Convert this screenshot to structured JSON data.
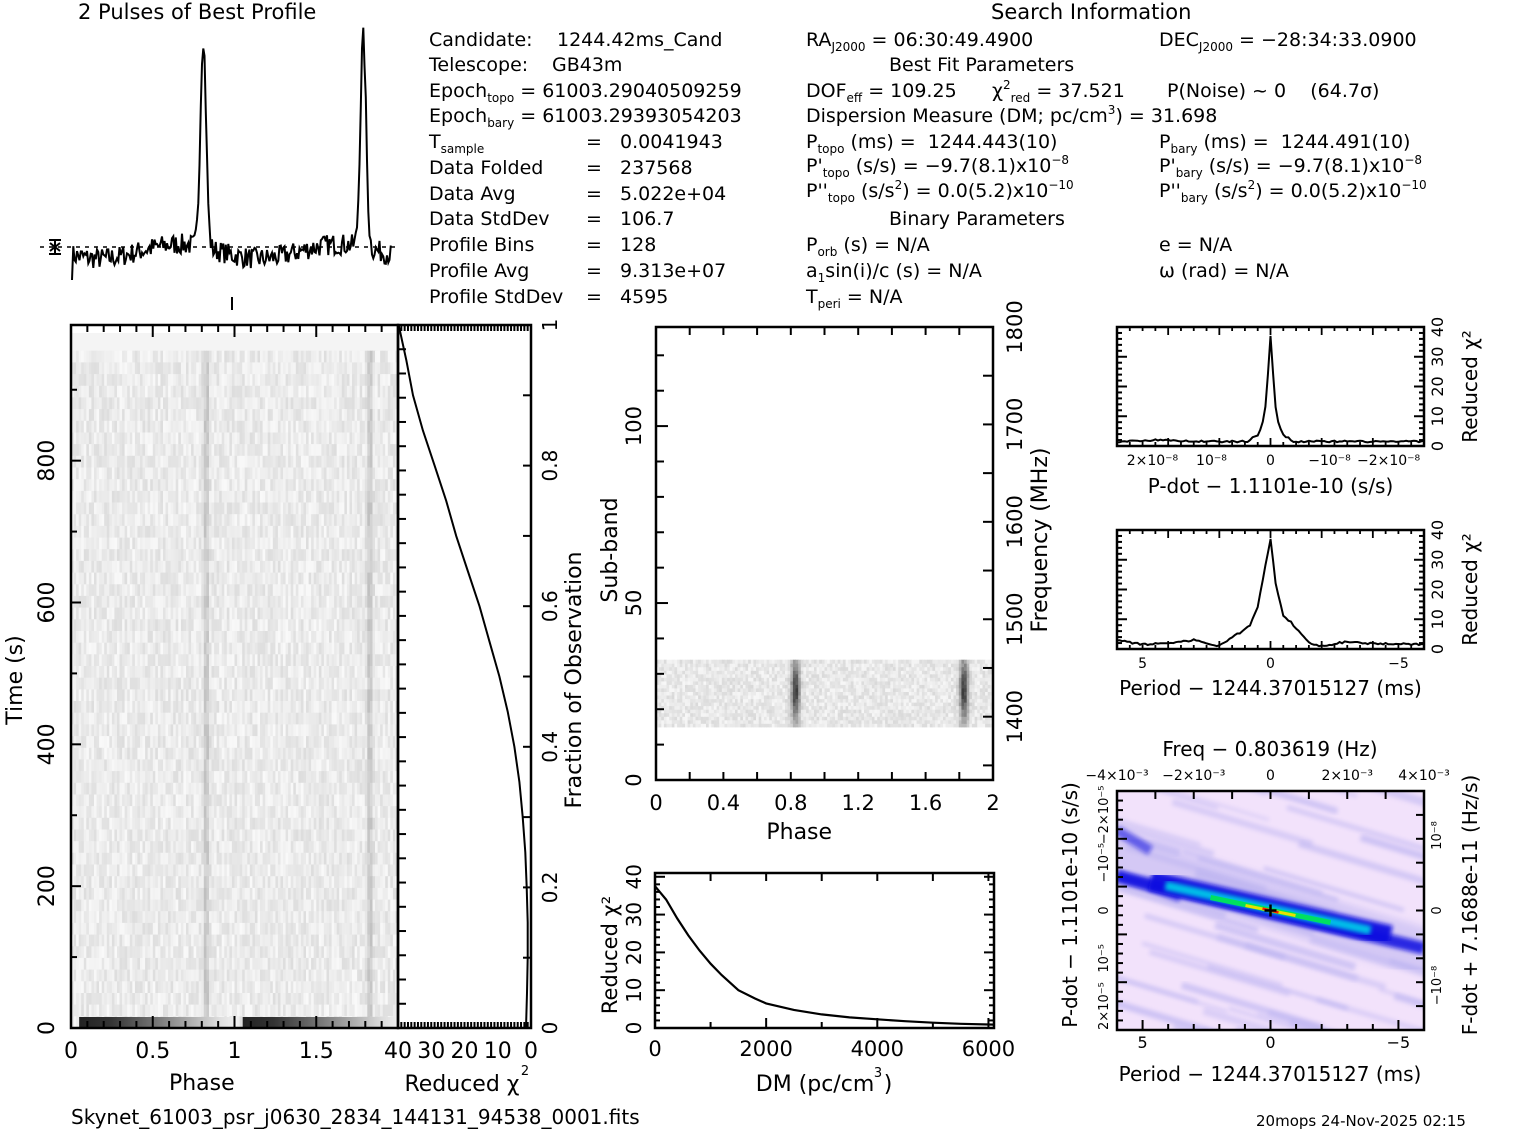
{
  "profile": {
    "title": "2 Pulses of Best Profile"
  },
  "search_info": {
    "title": "Search Information",
    "candidate_label": "Candidate:",
    "candidate": "1244.42ms_Cand",
    "telescope_label": "Telescope:",
    "telescope": "GB43m",
    "epoch_topo_label": "Epoch",
    "epoch_topo_sub": "topo",
    "epoch_topo": "= 61003.29040509259",
    "epoch_bary_label": "Epoch",
    "epoch_bary_sub": "bary",
    "epoch_bary": "= 61003.29393054203",
    "tsample_label": "T",
    "tsample_sub": "sample",
    "tsample": "=   0.0041943",
    "data_folded_label": "Data Folded",
    "data_folded": "=   237568",
    "data_avg_label": "Data Avg",
    "data_avg": "=   5.022e+04",
    "data_stddev_label": "Data StdDev",
    "data_stddev": "=   106.7",
    "profile_bins_label": "Profile Bins",
    "profile_bins": "=   128",
    "profile_avg_label": "Profile Avg",
    "profile_avg": "=   9.313e+07",
    "profile_stddev_label": "Profile StdDev",
    "profile_stddev": "=   4595",
    "ra_label": "RA",
    "ra_sub": "J2000",
    "ra": " = 06:30:49.4900",
    "dec_label": "DEC",
    "dec_sub": "J2000",
    "dec": " = −28:34:33.0900",
    "best_fit_title": "Best Fit Parameters",
    "dof_label": "DOF",
    "dof_sub": "eff",
    "dof": " = 109.25",
    "chi_label": "χ",
    "chi_sup": "2",
    "chi_sub": "red",
    "chi": " = 37.521",
    "pnoise": "P(Noise) ~ 0    (64.7σ)",
    "dm_label": "Dispersion Measure (DM; pc/cm",
    "dm_sup": "3",
    "dm": ") = 31.698",
    "ptopo_label": "P",
    "ptopo_sub": "topo",
    "ptopo": " (ms) =  1244.443(10)",
    "pdtopo_label": "P'",
    "pdtopo_sub": "topo",
    "pdtopo": " (s/s) = −9.7(8.1)x10",
    "pdtopo_exp": "−8",
    "pddtopo_label": "P''",
    "pddtopo_sub": "topo",
    "pddtopo_a": " (s/s",
    "pddtopo_sup": "2",
    "pddtopo_b": ") = 0.0(5.2)x10",
    "pddtopo_exp": "−10",
    "pbary_label": "P",
    "pbary_sub": "bary",
    "pbary": " (ms) =  1244.491(10)",
    "pdbary_label": "P'",
    "pdbary_sub": "bary",
    "pdbary": " (s/s) = −9.7(8.1)x10",
    "pdbary_exp": "−8",
    "pddbary_label": "P''",
    "pddbary_sub": "bary",
    "pddbary_a": " (s/s",
    "pddbary_sup": "2",
    "pddbary_b": ") = 0.0(5.2)x10",
    "pddbary_exp": "−10",
    "binary_title": "Binary Parameters",
    "porb_label": "P",
    "porb_sub": "orb",
    "porb": " (s) = N/A",
    "asini_label": "a",
    "asini_sub": "1",
    "asini": "sin(i)/c (s) = N/A",
    "tperi_label": "T",
    "tperi_sub": "peri",
    "tperi": " = N/A",
    "e": "e = N/A",
    "omega": "ω (rad) = N/A"
  },
  "footer": {
    "filename": "Skynet_61003_psr_j0630_2834_144131_94538_0001.fits",
    "stamp": "20mops 24-Nov-2025 02:15"
  },
  "chart_data": [
    {
      "id": "profile",
      "type": "line",
      "title": "2 Pulses of Best Profile",
      "xlabel": "",
      "ylabel": "",
      "xlim": [
        0,
        2
      ],
      "peaks_phase": [
        0.82,
        1.82
      ],
      "baseline_level": 0.12,
      "peak_level": 1.0
    },
    {
      "id": "time-phase",
      "type": "heatmap",
      "xlabel": "Phase",
      "ylabel": "Time (s)",
      "xlim": [
        0,
        2
      ],
      "ylim": [
        0,
        980
      ],
      "xticks": [
        "0",
        "0.5",
        "1",
        "1.5"
      ],
      "yticks": [
        "0",
        "200",
        "400",
        "600",
        "800"
      ],
      "pulse_phase": [
        0.82,
        1.82
      ]
    },
    {
      "id": "chi-vs-time",
      "type": "line",
      "xlabel": "Reduced χ²",
      "ylabel": "Fraction of Observation",
      "xlim": [
        40,
        0
      ],
      "ylim": [
        0,
        1
      ],
      "xticks": [
        "40",
        "30",
        "20",
        "10",
        "0"
      ],
      "yticks": [
        "0",
        "0.2",
        "0.4",
        "0.6",
        "0.8",
        "1"
      ],
      "x": [
        1.5,
        1.2,
        1.0,
        1.0,
        1.3,
        1.7,
        2.5,
        3.5,
        5.0,
        7.0,
        9.5,
        12.5,
        15.5,
        19.0,
        22.5,
        25.5,
        29.0,
        32.5,
        35.5,
        37.5
      ],
      "y": [
        0.0,
        0.05,
        0.1,
        0.15,
        0.2,
        0.25,
        0.3,
        0.35,
        0.4,
        0.45,
        0.5,
        0.55,
        0.6,
        0.65,
        0.7,
        0.75,
        0.8,
        0.85,
        0.9,
        0.95
      ]
    },
    {
      "id": "subband-phase",
      "type": "heatmap",
      "xlabel": "Phase",
      "ylabel": "Sub-band",
      "y2label": "Frequency (MHz)",
      "xlim": [
        0,
        2
      ],
      "ylim": [
        0,
        128
      ],
      "y2lim": [
        1335,
        1800
      ],
      "xticks": [
        "0",
        "0.4",
        "0.8",
        "1.2",
        "1.6",
        "2"
      ],
      "yticks": [
        "0",
        "50",
        "100"
      ],
      "y2ticks": [
        "1400",
        "1500",
        "1600",
        "1700",
        "1800"
      ],
      "active_subbands": [
        15,
        34
      ],
      "pulse_phase": [
        0.82,
        1.82
      ]
    },
    {
      "id": "chi-vs-dm",
      "type": "line",
      "xlabel": "DM (pc/cm³)",
      "ylabel": "Reduced χ²",
      "xlim": [
        0,
        6100
      ],
      "ylim": [
        0,
        41
      ],
      "xticks": [
        "0",
        "2000",
        "4000",
        "6000"
      ],
      "yticks": [
        "0",
        "10",
        "20",
        "30",
        "40"
      ],
      "x": [
        0,
        200,
        400,
        600,
        800,
        1000,
        1200,
        1500,
        1800,
        2000,
        2500,
        3000,
        3500,
        4000,
        4500,
        5000,
        5500,
        6100
      ],
      "y": [
        37.5,
        34,
        29,
        24.5,
        20.5,
        17,
        14,
        10,
        7.8,
        6.5,
        4.8,
        3.6,
        2.8,
        2.3,
        1.8,
        1.4,
        1.1,
        0.9
      ]
    },
    {
      "id": "chi-vs-pdot",
      "type": "line",
      "xlabel": "P-dot − 1.1101e-10 (s/s)",
      "ylabel": "Reduced χ²",
      "xlim": [
        2.6e-08,
        -2.6e-08
      ],
      "ylim": [
        0,
        40
      ],
      "xticks": [
        "2×10⁻⁸",
        "10⁻⁸",
        "0",
        "−10⁻⁸",
        "−2×10⁻⁸"
      ],
      "yticks": [
        "0",
        "10",
        "20",
        "30",
        "40"
      ],
      "x": [
        2.6e-08,
        2e-08,
        1e-08,
        4e-09,
        2e-09,
        1e-09,
        5e-10,
        0,
        -5e-10,
        -1e-09,
        -2e-09,
        -4e-09,
        -1e-08,
        -2e-08,
        -2.6e-08
      ],
      "y": [
        1.5,
        2,
        1.5,
        1.5,
        4,
        10,
        22,
        37,
        22,
        10,
        4,
        1.5,
        1.5,
        1.5,
        1.5
      ]
    },
    {
      "id": "chi-vs-period",
      "type": "line",
      "xlabel": "Period − 1244.37015127 (ms)",
      "ylabel": "Reduced χ²",
      "xlim": [
        6,
        -6
      ],
      "ylim": [
        0,
        40
      ],
      "xticks": [
        "5",
        "0",
        "−5"
      ],
      "yticks": [
        "0",
        "10",
        "20",
        "30",
        "40"
      ],
      "x": [
        6,
        5,
        4,
        3,
        2,
        1.5,
        1.2,
        0.8,
        0.5,
        0.2,
        0,
        -0.2,
        -0.5,
        -0.8,
        -1.2,
        -1.6,
        -2,
        -3,
        -4,
        -5,
        -6
      ],
      "y": [
        3,
        1.5,
        2,
        3,
        1,
        4,
        5.5,
        8,
        14,
        28,
        37,
        22,
        11,
        9,
        5,
        1.5,
        1,
        2.5,
        1.8,
        1.8,
        1.5
      ]
    },
    {
      "id": "period-pdot-plane",
      "type": "heatmap",
      "title": "Freq − 0.803619 (Hz)",
      "xlabel": "Period − 1244.37015127 (ms)",
      "ylabel": "P-dot − 1.1101e-10 (s/s)",
      "x2label": "Freq − 0.803619 (Hz)",
      "y2label": "F-dot + 7.1688e-11 (Hz/s)",
      "xlim": [
        6,
        -6
      ],
      "ylim": [
        2.5e-05,
        -2.5e-05
      ],
      "xticks": [
        "5",
        "0",
        "−5"
      ],
      "yticks": [
        "2×10⁻⁵",
        "10⁻⁵",
        "0",
        "−10⁻⁵",
        "−2×10⁻⁵"
      ],
      "x2ticks": [
        "−4×10⁻³",
        "−2×10⁻³",
        "0",
        "2×10⁻³",
        "4×10⁻³"
      ],
      "y2ticks": [
        "10⁻⁸",
        "0",
        "−10⁻⁸"
      ],
      "best_fit": [
        0,
        0
      ],
      "colormap": [
        "#ffe8ff",
        "#b8b0f0",
        "#1010e0",
        "#00c8e8",
        "#00e060",
        "#e8e000",
        "#ff2000"
      ]
    }
  ]
}
